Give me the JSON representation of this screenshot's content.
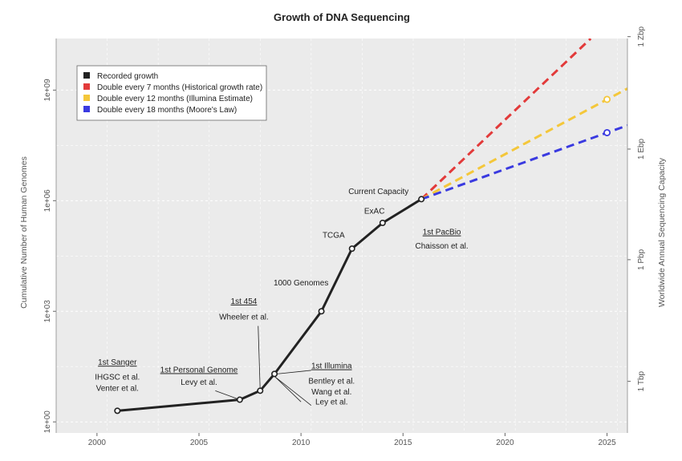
{
  "chart_data": {
    "type": "line",
    "title": "Growth of DNA Sequencing",
    "ylabel": "Cumulative Number of Human Genomes",
    "y2label": "Worldwide Annual Sequencing Capacity",
    "xlim": [
      1998,
      2026
    ],
    "ylim_log10": [
      -0.3,
      10.4
    ],
    "x_ticks": [
      "2000",
      "2005",
      "2010",
      "2015",
      "2020",
      "2025"
    ],
    "y_ticks": [
      "1e+00",
      "1e+03",
      "1e+06",
      "1e+09"
    ],
    "y2_ticks": [
      "1 Tbp",
      "1 Pbp",
      "1 Ebp",
      "1 Zbp"
    ],
    "grid": true,
    "legend_position": "top-left",
    "series": [
      {
        "name": "Recorded growth",
        "color": "#222222",
        "style": "solid",
        "points": [
          {
            "x": 2001.0,
            "y": 2
          },
          {
            "x": 2007.0,
            "y": 4
          },
          {
            "x": 2008.0,
            "y": 7
          },
          {
            "x": 2008.7,
            "y": 20
          },
          {
            "x": 2011.0,
            "y": 1000
          },
          {
            "x": 2012.5,
            "y": 50000
          },
          {
            "x": 2014.0,
            "y": 250000
          },
          {
            "x": 2015.9,
            "y": 1100000
          }
        ]
      },
      {
        "name": "Double every 7 months (Historical growth rate)",
        "color": "#e23a3a",
        "style": "dashed",
        "points": [
          {
            "x": 2015.9,
            "y": 1100000
          },
          {
            "x": 2024.2,
            "y": 25000000000
          }
        ]
      },
      {
        "name": "Double every 12 months (Illumina Estimate)",
        "color": "#f4c73a",
        "style": "dashed",
        "points": [
          {
            "x": 2015.9,
            "y": 1100000
          },
          {
            "x": 2025.0,
            "y": 560000000
          },
          {
            "x": 2026.0,
            "y": 1100000000
          }
        ]
      },
      {
        "name": "Double every 18 months (Moore's Law)",
        "color": "#3a3ae0",
        "style": "dashed",
        "points": [
          {
            "x": 2015.9,
            "y": 1100000
          },
          {
            "x": 2025.0,
            "y": 70000000
          },
          {
            "x": 2026.0,
            "y": 110000000
          }
        ]
      }
    ],
    "annotations": [
      {
        "id": "sanger_head",
        "text": "1st Sanger",
        "x": 2001.0,
        "y": 35,
        "underline": true
      },
      {
        "id": "sanger_l1",
        "text": "IHGSC et al.",
        "x": 2001.0,
        "y": 14
      },
      {
        "id": "sanger_l2",
        "text": "Venter et al.",
        "x": 2001.0,
        "y": 7
      },
      {
        "id": "pg_head",
        "text": "1st Personal Genome",
        "x": 2005.0,
        "y": 22,
        "underline": true
      },
      {
        "id": "pg_l1",
        "text": "Levy et al.",
        "x": 2005.0,
        "y": 10
      },
      {
        "id": "r454_head",
        "text": "1st 454",
        "x": 2007.2,
        "y": 1600,
        "underline": true
      },
      {
        "id": "r454_l1",
        "text": "Wheeler et al.",
        "x": 2007.2,
        "y": 600
      },
      {
        "id": "ill_head",
        "text": "1st Illumina",
        "x": 2011.5,
        "y": 28,
        "underline": true
      },
      {
        "id": "ill_l1",
        "text": "Bentley et al.",
        "x": 2011.5,
        "y": 11
      },
      {
        "id": "ill_l2",
        "text": "Wang et al.",
        "x": 2011.5,
        "y": 5.5
      },
      {
        "id": "ill_l3",
        "text": "Ley et al.",
        "x": 2011.5,
        "y": 3
      },
      {
        "id": "g1000",
        "text": "1000 Genomes",
        "x": 2010.0,
        "y": 5000
      },
      {
        "id": "tcga",
        "text": "TCGA",
        "x": 2011.6,
        "y": 100000
      },
      {
        "id": "exac",
        "text": "ExAC",
        "x": 2013.6,
        "y": 450000
      },
      {
        "id": "current",
        "text": "Current Capacity",
        "x": 2013.8,
        "y": 1500000
      },
      {
        "id": "pacbio_head",
        "text": "1st PacBio",
        "x": 2016.9,
        "y": 120000,
        "underline": true
      },
      {
        "id": "pacbio_l1",
        "text": "Chaisson et al.",
        "x": 2016.9,
        "y": 50000
      }
    ],
    "end_markers": [
      {
        "x": 2025.0,
        "y": 560000000,
        "color": "#f4c73a"
      },
      {
        "x": 2025.0,
        "y": 70000000,
        "color": "#3a3ae0"
      }
    ]
  }
}
